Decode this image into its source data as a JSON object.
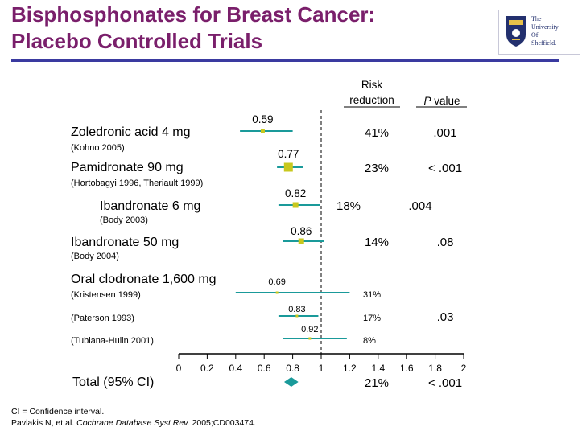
{
  "header": {
    "title_line1": "Bisphosphonates for Breast Cancer:",
    "title_line2": "Placebo Controlled Trials"
  },
  "logo": {
    "line1": "The",
    "line2": "University",
    "line3": "Of",
    "line4": "Sheffield."
  },
  "chart_data": {
    "type": "forest",
    "xlim": [
      0,
      2
    ],
    "xticks": [
      "0",
      "0.2",
      "0.4",
      "0.6",
      "0.8",
      "1",
      "1.2",
      "1.4",
      "1.6",
      "1.8",
      "2"
    ],
    "reference_line": 1,
    "column_headers": {
      "risk_reduction": "Risk\nreduction",
      "p_value_italic": "P",
      "p_value_rest": " value"
    },
    "rows": [
      {
        "label": "Zoledronic acid 4 mg",
        "ref": "(Kohno 2005)",
        "estimate": 0.59,
        "estimate_label": "0.59",
        "ci": [
          0.43,
          0.8
        ],
        "reduction": "41%",
        "p": ".001",
        "size": "small",
        "group": "main"
      },
      {
        "label": "Pamidronate 90 mg",
        "ref": "(Hortobagyi 1996, Theriault 1999)",
        "estimate": 0.77,
        "estimate_label": "0.77",
        "ci": [
          0.69,
          0.87
        ],
        "reduction": "23%",
        "p": "< .001",
        "size": "large",
        "group": "main"
      },
      {
        "label": "Ibandronate 6 mg",
        "ref": "(Body 2003)",
        "estimate": 0.82,
        "estimate_label": "0.82",
        "ci": [
          0.7,
          0.99
        ],
        "reduction": "18%",
        "p": ".004",
        "size": "medium",
        "group": "indent"
      },
      {
        "label": "Ibandronate 50 mg",
        "ref": "(Body 2004)",
        "estimate": 0.86,
        "estimate_label": "0.86",
        "ci": [
          0.73,
          1.02
        ],
        "reduction": "14%",
        "p": ".08",
        "size": "medium",
        "group": "main"
      },
      {
        "label": "Oral clodronate 1,600 mg",
        "ref": "(Kristensen 1999)",
        "estimate": 0.69,
        "estimate_label": "0.69",
        "ci": [
          0.4,
          1.2
        ],
        "reduction": "31%",
        "p": "",
        "size": "tiny",
        "group": "sub"
      },
      {
        "label": "",
        "ref": "(Paterson 1993)",
        "estimate": 0.83,
        "estimate_label": "0.83",
        "ci": [
          0.7,
          0.98
        ],
        "reduction": "17%",
        "p": ".03",
        "size": "tiny",
        "group": "sub"
      },
      {
        "label": "",
        "ref": "(Tubiana-Hulin 2001)",
        "estimate": 0.92,
        "estimate_label": "0.92",
        "ci": [
          0.73,
          1.18
        ],
        "reduction": "8%",
        "p": "",
        "size": "tiny",
        "group": "sub"
      }
    ],
    "total": {
      "label": "Total (95% CI)",
      "estimate": 0.79,
      "ci": [
        0.74,
        0.84
      ],
      "reduction": "21%",
      "p": "< .001"
    },
    "colors": {
      "ci_line": "#1a9a9a",
      "marker": "#c8c81e",
      "diamond": "#1a9a9a",
      "title": "#7a1f6b",
      "rule": "#3a3aa0"
    }
  },
  "footer": {
    "note": "CI = Confidence interval.",
    "citation_prefix": "Pavlakis N, et al. ",
    "citation_journal": "Cochrane Database Syst Rev.",
    "citation_suffix": " 2005;CD003474."
  }
}
